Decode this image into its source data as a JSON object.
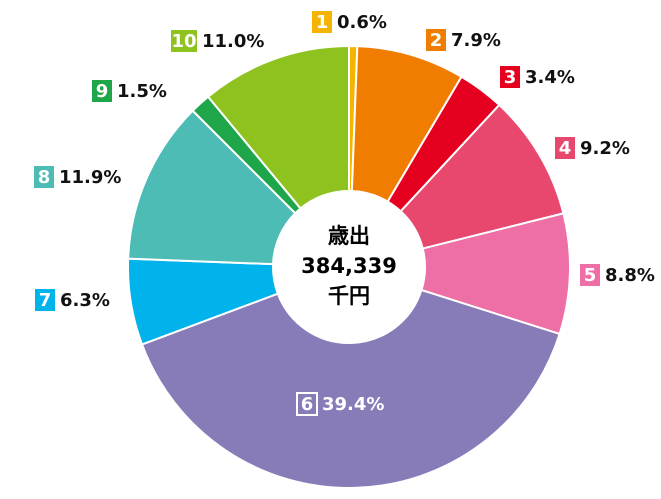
{
  "chart_data": {
    "type": "pie",
    "donut": true,
    "center_text": [
      "歳出",
      "384,339",
      "千円"
    ],
    "categories": [
      "1",
      "2",
      "3",
      "4",
      "5",
      "6",
      "7",
      "8",
      "9",
      "10"
    ],
    "values": [
      0.6,
      7.9,
      3.4,
      9.2,
      8.8,
      39.4,
      6.3,
      11.9,
      1.5,
      11.0
    ],
    "value_labels": [
      "0.6%",
      "7.9%",
      "3.4%",
      "9.2%",
      "8.8%",
      "39.4%",
      "6.3%",
      "11.9%",
      "1.5%",
      "11.0%"
    ],
    "colors": [
      "#f5b400",
      "#f07d00",
      "#e60020",
      "#e8486e",
      "#ee6ea6",
      "#877bb8",
      "#00b3ea",
      "#4cbcb4",
      "#1fa64a",
      "#8ec31f"
    ]
  }
}
